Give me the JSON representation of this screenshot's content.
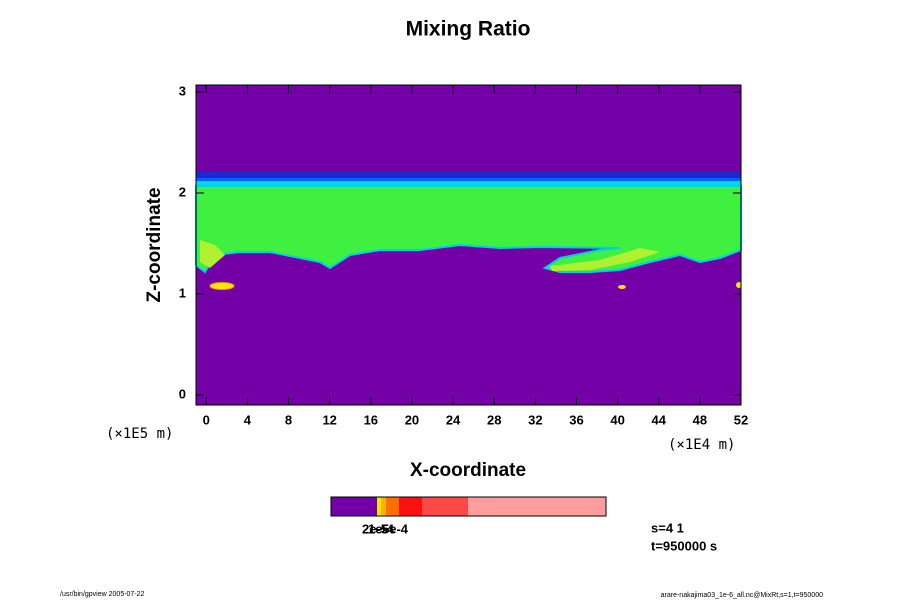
{
  "chart_data": {
    "type": "contour",
    "title": "Mixing Ratio",
    "x_label": "X-coordinate",
    "y_label": "Z-coordinate",
    "x_unit": "(×1E4 m)",
    "y_unit": "(×1E5 m)",
    "xlim": [
      -1,
      52
    ],
    "ylim": [
      -0.1,
      3.07
    ],
    "xticks": [
      0,
      4,
      8,
      12,
      16,
      20,
      24,
      28,
      32,
      36,
      40,
      44,
      48,
      52
    ],
    "yticks": [
      0,
      1,
      2,
      3
    ],
    "colorbar_labels": [
      "2e-5",
      "1e-4",
      "5e-4"
    ],
    "annotations": [
      "s=4 1",
      "t=950000 s"
    ],
    "footer_left": "/usr/bin/gpview 2005-07-22",
    "footer_right": "arare-nakajima03_1e-6_all.nc@MixRt,s=1,t=950000"
  }
}
